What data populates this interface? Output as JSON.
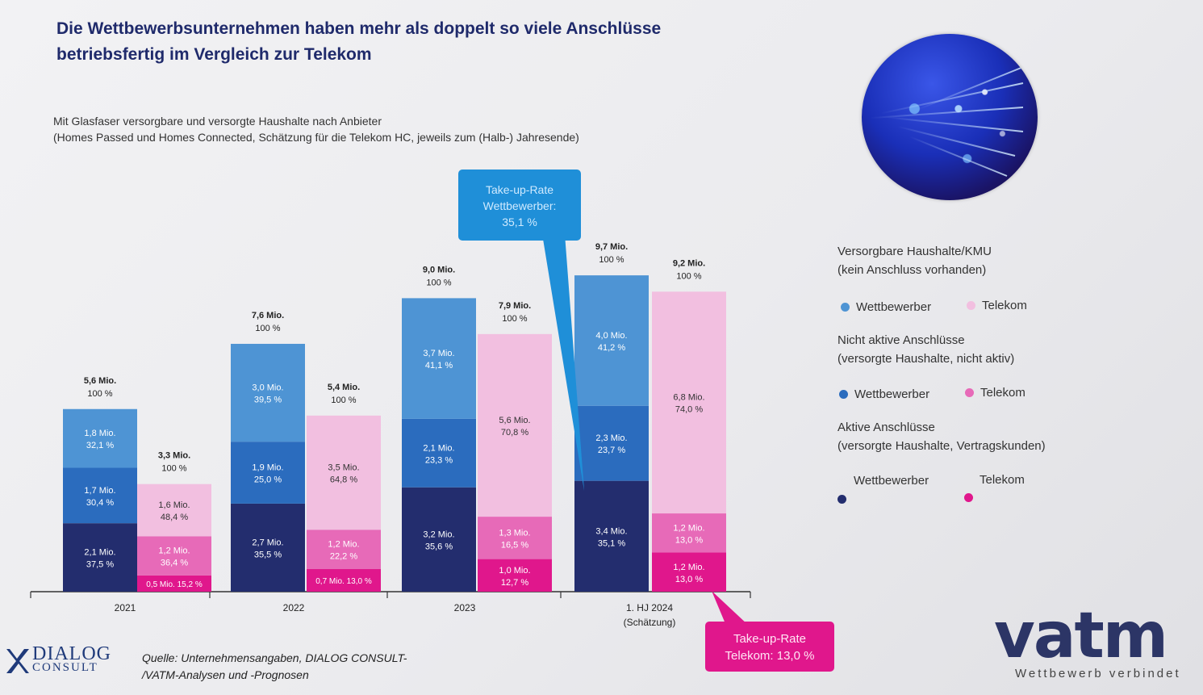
{
  "title": "Die Wettbewerbsunternehmen haben mehr als doppelt so viele Anschlüsse betriebsfertig im Vergleich zur Telekom",
  "subtitle_line1": "Mit Glasfaser versorgbare und versorgte Haushalte nach Anbieter",
  "subtitle_line2": "(Homes Passed und Homes Connected, Schätzung für die Telekom HC, jeweils zum (Halb-) Jahresende)",
  "colors": {
    "wb_versorgbar": "#4e94d4",
    "wb_nicht_aktiv": "#2b6cbe",
    "wb_aktiv": "#232d6e",
    "tk_versorgbar": "#f2bfe0",
    "tk_nicht_aktiv": "#e76ab8",
    "tk_aktiv": "#e0178c",
    "callout_wb": "#1f8fd8",
    "callout_tk": "#e0178c"
  },
  "chart_data": {
    "type": "bar",
    "stacked": true,
    "unit": "Mio.",
    "categories": [
      "2021",
      "2022",
      "2023",
      "1. HJ 2024"
    ],
    "category_notes": [
      "",
      "",
      "",
      "(Schätzung)"
    ],
    "bars": [
      {
        "category": "2021",
        "provider": "Wettbewerber",
        "total": "5,6 Mio.",
        "total_pct": "100 %",
        "segments": [
          {
            "layer": "aktiv",
            "value": 2.1,
            "label": "2,1 Mio.",
            "pct": "37,5 %"
          },
          {
            "layer": "nicht_aktiv",
            "value": 1.7,
            "label": "1,7 Mio.",
            "pct": "30,4 %"
          },
          {
            "layer": "versorgbar",
            "value": 1.8,
            "label": "1,8 Mio.",
            "pct": "32,1 %"
          }
        ]
      },
      {
        "category": "2021",
        "provider": "Telekom",
        "total": "3,3 Mio.",
        "total_pct": "100 %",
        "segments": [
          {
            "layer": "aktiv",
            "value": 0.5,
            "label": "0,5 Mio. 15,2 %",
            "pct": ""
          },
          {
            "layer": "nicht_aktiv",
            "value": 1.2,
            "label": "1,2 Mio.",
            "pct": "36,4 %"
          },
          {
            "layer": "versorgbar",
            "value": 1.6,
            "label": "1,6 Mio.",
            "pct": "48,4 %"
          }
        ]
      },
      {
        "category": "2022",
        "provider": "Wettbewerber",
        "total": "7,6 Mio.",
        "total_pct": "100 %",
        "segments": [
          {
            "layer": "aktiv",
            "value": 2.7,
            "label": "2,7 Mio.",
            "pct": "35,5 %"
          },
          {
            "layer": "nicht_aktiv",
            "value": 1.9,
            "label": "1,9 Mio.",
            "pct": "25,0 %"
          },
          {
            "layer": "versorgbar",
            "value": 3.0,
            "label": "3,0 Mio.",
            "pct": "39,5 %"
          }
        ]
      },
      {
        "category": "2022",
        "provider": "Telekom",
        "total": "5,4 Mio.",
        "total_pct": "100 %",
        "segments": [
          {
            "layer": "aktiv",
            "value": 0.7,
            "label": "0,7 Mio. 13,0 %",
            "pct": ""
          },
          {
            "layer": "nicht_aktiv",
            "value": 1.2,
            "label": "1,2 Mio.",
            "pct": "22,2 %"
          },
          {
            "layer": "versorgbar",
            "value": 3.5,
            "label": "3,5 Mio.",
            "pct": "64,8 %"
          }
        ]
      },
      {
        "category": "2023",
        "provider": "Wettbewerber",
        "total": "9,0 Mio.",
        "total_pct": "100 %",
        "segments": [
          {
            "layer": "aktiv",
            "value": 3.2,
            "label": "3,2 Mio.",
            "pct": "35,6 %"
          },
          {
            "layer": "nicht_aktiv",
            "value": 2.1,
            "label": "2,1 Mio.",
            "pct": "23,3 %"
          },
          {
            "layer": "versorgbar",
            "value": 3.7,
            "label": "3,7 Mio.",
            "pct": "41,1 %"
          }
        ]
      },
      {
        "category": "2023",
        "provider": "Telekom",
        "total": "7,9 Mio.",
        "total_pct": "100 %",
        "segments": [
          {
            "layer": "aktiv",
            "value": 1.0,
            "label": "1,0 Mio.",
            "pct": "12,7 %"
          },
          {
            "layer": "nicht_aktiv",
            "value": 1.3,
            "label": "1,3 Mio.",
            "pct": "16,5 %"
          },
          {
            "layer": "versorgbar",
            "value": 5.6,
            "label": "5,6 Mio.",
            "pct": "70,8 %"
          }
        ]
      },
      {
        "category": "1. HJ 2024",
        "provider": "Wettbewerber",
        "total": "9,7 Mio.",
        "total_pct": "100 %",
        "segments": [
          {
            "layer": "aktiv",
            "value": 3.4,
            "label": "3,4 Mio.",
            "pct": "35,1 %"
          },
          {
            "layer": "nicht_aktiv",
            "value": 2.3,
            "label": "2,3 Mio.",
            "pct": "23,7 %"
          },
          {
            "layer": "versorgbar",
            "value": 4.0,
            "label": "4,0 Mio.",
            "pct": "41,2 %"
          }
        ]
      },
      {
        "category": "1. HJ 2024",
        "provider": "Telekom",
        "total": "9,2 Mio.",
        "total_pct": "100 %",
        "segments": [
          {
            "layer": "aktiv",
            "value": 1.2,
            "label": "1,2 Mio.",
            "pct": "13,0 %"
          },
          {
            "layer": "nicht_aktiv",
            "value": 1.2,
            "label": "1,2 Mio.",
            "pct": "13,0 %"
          },
          {
            "layer": "versorgbar",
            "value": 6.8,
            "label": "6,8 Mio.",
            "pct": "74,0 %"
          }
        ]
      }
    ],
    "annotations": [
      {
        "text": "Take-up-Rate Wettbewerber: 35,1 %",
        "lines": [
          "Take-up-Rate",
          "Wettbewerber:",
          "35,1 %"
        ]
      },
      {
        "text": "Take-up-Rate Telekom: 13,0 %",
        "lines": [
          "Take-up-Rate",
          "Telekom: 13,0 %"
        ]
      }
    ],
    "legend_position": "right"
  },
  "legend": {
    "group1_line1": "Versorgbare Haushalte/KMU",
    "group1_line2": "(kein Anschluss vorhanden)",
    "group2_line1": "Nicht aktive Anschlüsse",
    "group2_line2": "(versorgte Haushalte, nicht aktiv)",
    "group3_line1": "Aktive Anschlüsse",
    "group3_line2": "(versorgte Haushalte, Vertragskunden)",
    "wettbewerber": "Wettbewerber",
    "telekom": "Telekom"
  },
  "footer": {
    "dialog_line1": "DIALOG",
    "dialog_line2": "CONSULT",
    "source_line1": "Quelle: Unternehmensangaben, DIALOG CONSULT-",
    "source_line2": "/VATM-Analysen und -Prognosen",
    "vatm_word": "vatm",
    "vatm_tagline": "Wettbewerb verbindet"
  }
}
